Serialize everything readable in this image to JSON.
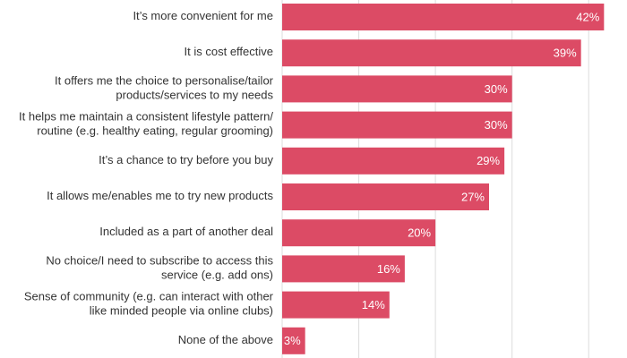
{
  "chart_data": {
    "type": "barh",
    "categories": [
      [
        "It’s more convenient for me"
      ],
      [
        "It is cost effective"
      ],
      [
        "It offers me the choice to personalise/tailor",
        "products/services to my needs"
      ],
      [
        "It helps me maintain a consistent lifestyle pattern/",
        "routine (e.g. healthy eating, regular grooming)"
      ],
      [
        "It’s a chance to try before you buy"
      ],
      [
        "It allows me/enables me to try new products"
      ],
      [
        "Included as a part of another deal"
      ],
      [
        "No choice/I need to subscribe to access this",
        "service (e.g. add ons)"
      ],
      [
        "Sense of community (e.g. can interact with other",
        "like minded people via online clubs)"
      ],
      [
        "None of the above"
      ]
    ],
    "values": [
      42,
      39,
      30,
      30,
      29,
      27,
      20,
      16,
      14,
      3
    ],
    "value_labels": [
      "42%",
      "39%",
      "30%",
      "30%",
      "29%",
      "27%",
      "20%",
      "16%",
      "14%",
      "3%"
    ],
    "color": "#dc4b65",
    "xlim": [
      0,
      45
    ],
    "xticks": [
      0,
      10,
      20,
      30,
      40
    ],
    "grid": true
  }
}
